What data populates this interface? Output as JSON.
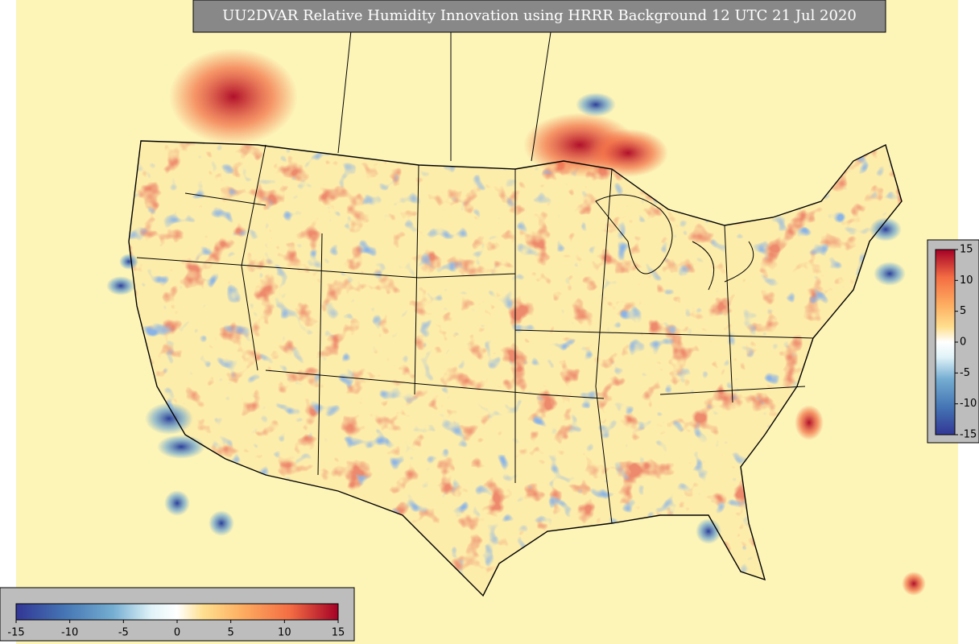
{
  "title": "UU2DVAR Relative Humidity Innovation using HRRR Background 12 UTC 21 Jul 2020",
  "colorbar_vertical": {
    "ticks": [
      15,
      10,
      5,
      0,
      -5,
      -10,
      -15
    ]
  },
  "colorbar_horizontal": {
    "ticks": [
      -15,
      -10,
      -5,
      0,
      5,
      10,
      15
    ]
  }
}
